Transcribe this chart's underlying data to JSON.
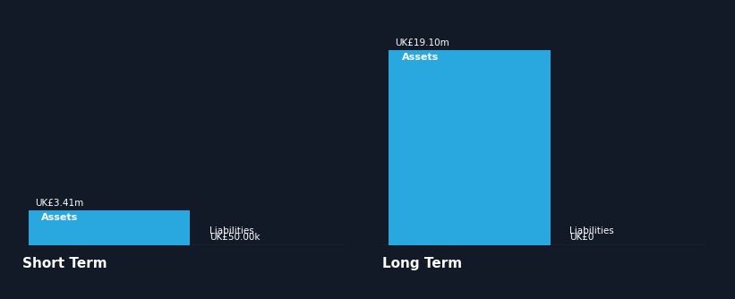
{
  "bg_color": "#131a27",
  "bar_color": "#29a8e0",
  "text_color": "#ffffff",
  "short_term": {
    "assets_value": 3.41,
    "assets_label": "UK£3.41m",
    "assets_inner_label": "Assets",
    "liabilities_label": "Liabilities",
    "liabilities_value_label": "UK£50.00k",
    "title": "Short Term"
  },
  "long_term": {
    "assets_value": 19.1,
    "assets_label": "UK£19.10m",
    "assets_inner_label": "Assets",
    "liabilities_label": "Liabilities",
    "liabilities_value_label": "UK£0",
    "title": "Long Term"
  },
  "y_max": 20.5
}
